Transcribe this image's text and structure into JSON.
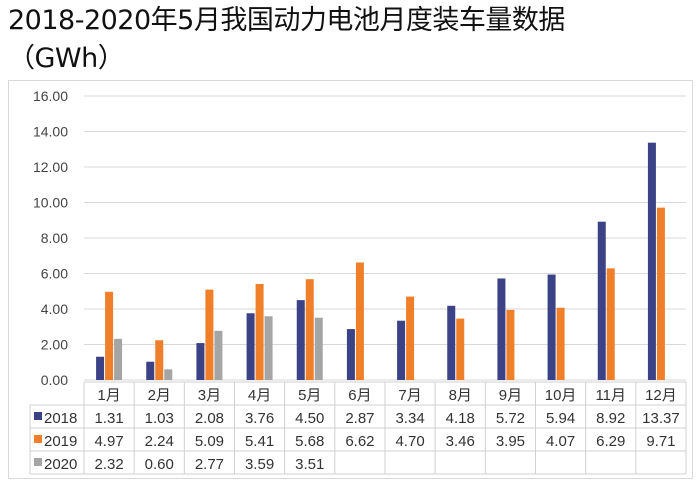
{
  "title_line1": "2018-2020年5月我国动力电池月度装车量数据",
  "title_line2": "（GWh）",
  "chart_data": {
    "type": "bar",
    "title": "2018-2020年5月我国动力电池月度装车量数据（GWh）",
    "categories": [
      "1月",
      "2月",
      "3月",
      "4月",
      "5月",
      "6月",
      "7月",
      "8月",
      "9月",
      "10月",
      "11月",
      "12月"
    ],
    "series": [
      {
        "name": "2018",
        "color": "#3b4285",
        "values": [
          1.31,
          1.03,
          2.08,
          3.76,
          4.5,
          2.87,
          3.34,
          4.18,
          5.72,
          5.94,
          8.92,
          13.37
        ],
        "labels": [
          "1.31",
          "1.03",
          "2.08",
          "3.76",
          "4.50",
          "2.87",
          "3.34",
          "4.18",
          "5.72",
          "5.94",
          "8.92",
          "13.37"
        ]
      },
      {
        "name": "2019",
        "color": "#f07f2a",
        "values": [
          4.97,
          2.24,
          5.09,
          5.41,
          5.68,
          6.62,
          4.7,
          3.46,
          3.95,
          4.07,
          6.29,
          9.71
        ],
        "labels": [
          "4.97",
          "2.24",
          "5.09",
          "5.41",
          "5.68",
          "6.62",
          "4.70",
          "3.46",
          "3.95",
          "4.07",
          "6.29",
          "9.71"
        ]
      },
      {
        "name": "2020",
        "color": "#a5a5a5",
        "values": [
          2.32,
          0.6,
          2.77,
          3.59,
          3.51,
          null,
          null,
          null,
          null,
          null,
          null,
          null
        ],
        "labels": [
          "2.32",
          "0.60",
          "2.77",
          "3.59",
          "3.51",
          "",
          "",
          "",
          "",
          "",
          "",
          ""
        ]
      }
    ],
    "yticks": [
      "0.00",
      "2.00",
      "4.00",
      "6.00",
      "8.00",
      "10.00",
      "12.00",
      "14.00",
      "16.00"
    ],
    "ylim": [
      0,
      16
    ],
    "grid": true,
    "legend": "data-table",
    "xlabel": "",
    "ylabel": ""
  }
}
